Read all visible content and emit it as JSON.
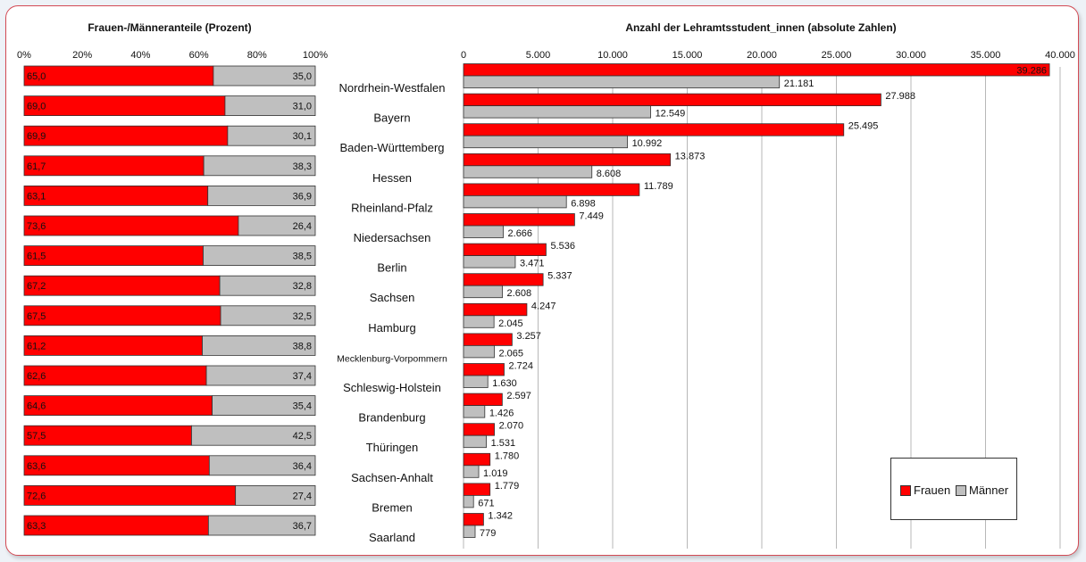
{
  "colors": {
    "frauen": "#ff0000",
    "maenner": "#bfbfbf",
    "frame": "#d34a54"
  },
  "chart_data": [
    {
      "type": "bar",
      "orientation": "horizontal",
      "stacked": true,
      "title": "Frauen-/Männeranteile (Prozent)",
      "ylabel_position": "top",
      "xlim": [
        0,
        100
      ],
      "x_ticks": [
        "0%",
        "20%",
        "40%",
        "60%",
        "80%",
        "100%"
      ],
      "categories": [
        "Nordrhein-Westfalen",
        "Bayern",
        "Baden-Württemberg",
        "Hessen",
        "Rheinland-Pfalz",
        "Niedersachsen",
        "Berlin",
        "Sachsen",
        "Hamburg",
        "Mecklenburg-Vorpommern",
        "Schleswig-Holstein",
        "Brandenburg",
        "Thüringen",
        "Sachsen-Anhalt",
        "Bremen",
        "Saarland"
      ],
      "series": [
        {
          "name": "Frauen",
          "values": [
            65.0,
            69.0,
            69.9,
            61.7,
            63.1,
            73.6,
            61.5,
            67.2,
            67.5,
            61.2,
            62.6,
            64.6,
            57.5,
            63.6,
            72.6,
            63.3
          ],
          "labels": [
            "65,0",
            "69,0",
            "69,9",
            "61,7",
            "63,1",
            "73,6",
            "61,5",
            "67,2",
            "67,5",
            "61,2",
            "62,6",
            "64,6",
            "57,5",
            "63,6",
            "72,6",
            "63,3"
          ]
        },
        {
          "name": "Männer",
          "values": [
            35.0,
            31.0,
            30.1,
            38.3,
            36.9,
            26.4,
            38.5,
            32.8,
            32.5,
            38.8,
            37.4,
            35.4,
            42.5,
            36.4,
            27.4,
            36.7
          ],
          "labels": [
            "35,0",
            "31,0",
            "30,1",
            "38,3",
            "36,9",
            "26,4",
            "38,5",
            "32,8",
            "32,5",
            "38,8",
            "37,4",
            "35,4",
            "42,5",
            "36,4",
            "27,4",
            "36,7"
          ]
        }
      ],
      "grid": false
    },
    {
      "type": "bar",
      "orientation": "horizontal",
      "stacked": false,
      "title": "Anzahl der Lehramtsstudent_innen (absolute Zahlen)",
      "xlim": [
        0,
        40000
      ],
      "x_ticks": [
        "0",
        "5.000",
        "10.000",
        "15.000",
        "20.000",
        "25.000",
        "30.000",
        "35.000",
        "40.000"
      ],
      "categories": [
        "Nordrhein-Westfalen",
        "Bayern",
        "Baden-Württemberg",
        "Hessen",
        "Rheinland-Pfalz",
        "Niedersachsen",
        "Berlin",
        "Sachsen",
        "Hamburg",
        "Mecklenburg-Vorpommern",
        "Schleswig-Holstein",
        "Brandenburg",
        "Thüringen",
        "Sachsen-Anhalt",
        "Bremen",
        "Saarland"
      ],
      "series": [
        {
          "name": "Frauen",
          "values": [
            39286,
            27988,
            25495,
            13873,
            11789,
            7449,
            5536,
            5337,
            4247,
            3257,
            2724,
            2597,
            2070,
            1780,
            1779,
            1342
          ],
          "labels": [
            "39.286",
            "27.988",
            "25.495",
            "13.873",
            "11.789",
            "7.449",
            "5.536",
            "5.337",
            "4.247",
            "3.257",
            "2.724",
            "2.597",
            "2.070",
            "1.780",
            "1.779",
            "1.342"
          ]
        },
        {
          "name": "Männer",
          "values": [
            21181,
            12549,
            10992,
            8608,
            6898,
            2666,
            3471,
            2608,
            2045,
            2065,
            1630,
            1426,
            1531,
            1019,
            671,
            779
          ],
          "labels": [
            "21.181",
            "12.549",
            "10.992",
            "8.608",
            "6.898",
            "2.666",
            "3.471",
            "2.608",
            "2.045",
            "2.065",
            "1.630",
            "1.426",
            "1.531",
            "1.019",
            "671",
            "779"
          ]
        }
      ],
      "grid": true,
      "legend": {
        "position": "bottom-right",
        "entries": [
          "Frauen",
          "Männer"
        ]
      }
    }
  ]
}
